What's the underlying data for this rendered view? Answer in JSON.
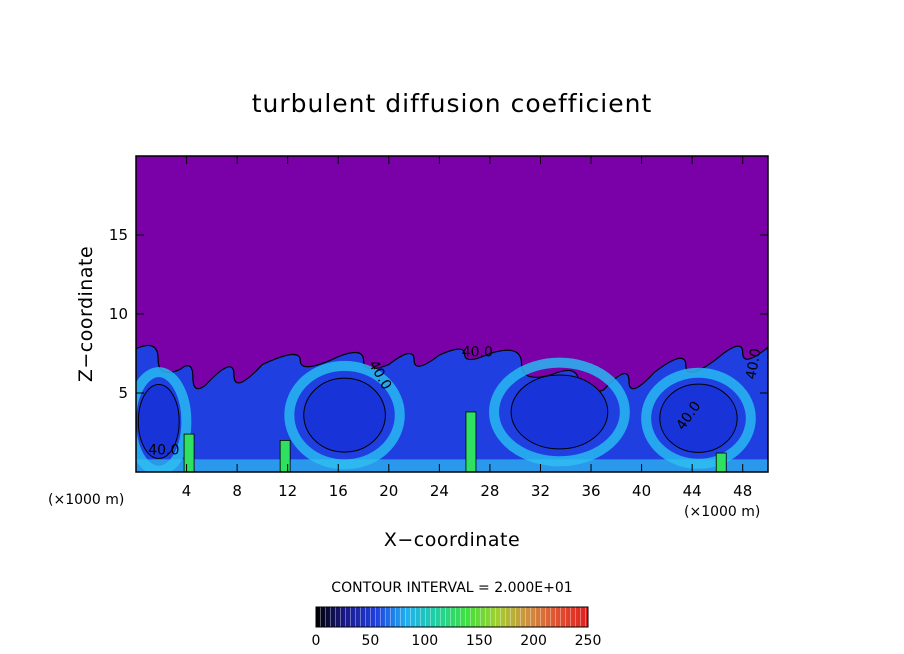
{
  "chart_data": {
    "type": "heatmap",
    "title": "turbulent diffusion coefficient",
    "xlabel": "X−coordinate",
    "ylabel": "Z−coordinate",
    "x_unit_label": "(×1000 m)",
    "x_unit_label_right": "(×1000 m)",
    "xlim": [
      0,
      50
    ],
    "ylim": [
      0,
      20
    ],
    "xticks": [
      4,
      8,
      12,
      16,
      20,
      24,
      28,
      32,
      36,
      40,
      44,
      48
    ],
    "xtick_labels": [
      "4",
      "8",
      "12",
      "16",
      "20",
      "24",
      "28",
      "32",
      "36",
      "40",
      "44",
      "48"
    ],
    "yticks": [
      5,
      10,
      15
    ],
    "ytick_labels": [
      "5",
      "10",
      "15"
    ],
    "background_color": "#7a00a8",
    "contour_interval_text": "CONTOUR INTERVAL = 2.000E+01",
    "contour_labels": [
      "40.0",
      "40.0",
      "40.0",
      "40.0",
      "40.0"
    ],
    "colorbar": {
      "range": [
        0,
        250
      ],
      "ticks": [
        0,
        50,
        100,
        150,
        200,
        250
      ],
      "tick_labels": [
        "0",
        "50",
        "100",
        "150",
        "200",
        "250"
      ],
      "colors": [
        "#000000",
        "#1a1a8c",
        "#2040e0",
        "#20b0f0",
        "#20d0a0",
        "#40e040",
        "#a0d030",
        "#d09040",
        "#e05030",
        "#e02020"
      ]
    },
    "cloud_tops_km": [
      {
        "x": 0,
        "z": 7.8
      },
      {
        "x": 3.5,
        "z": 6.5
      },
      {
        "x": 5.5,
        "z": 5.5
      },
      {
        "x": 10,
        "z": 6.8
      },
      {
        "x": 16,
        "z": 7.3
      },
      {
        "x": 20,
        "z": 6.8
      },
      {
        "x": 24,
        "z": 7.4
      },
      {
        "x": 28,
        "z": 7.5
      },
      {
        "x": 33,
        "z": 6.2
      },
      {
        "x": 37,
        "z": 5.2
      },
      {
        "x": 41,
        "z": 6.3
      },
      {
        "x": 46,
        "z": 7.2
      },
      {
        "x": 50,
        "z": 7.9
      }
    ]
  }
}
